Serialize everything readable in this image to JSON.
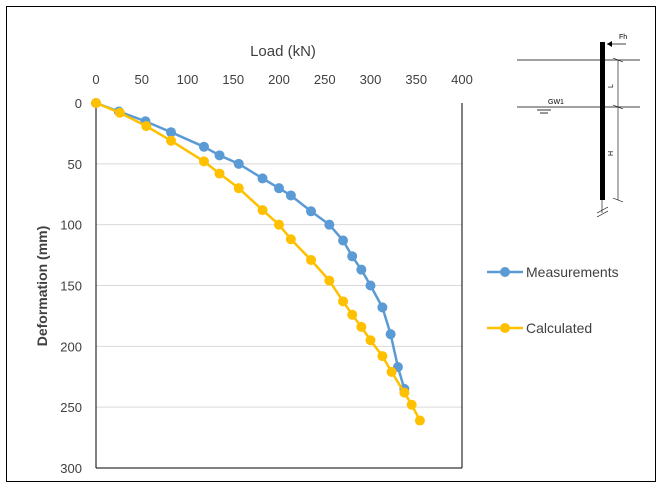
{
  "chart_data": {
    "type": "line",
    "xlabel": "Load (kN)",
    "ylabel": "Deformation (mm)",
    "xlim": [
      0,
      400
    ],
    "ylim": [
      0,
      300
    ],
    "x_axis_position": "top",
    "y_axis_reversed": true,
    "xticks": [
      0,
      50,
      100,
      150,
      200,
      250,
      300,
      350,
      400
    ],
    "yticks": [
      0,
      50,
      100,
      150,
      200,
      250,
      300
    ],
    "grid": "horizontal",
    "legend_position": "right",
    "series": [
      {
        "name": "Measurements",
        "color": "#5b9bd5",
        "x": [
          0,
          25,
          54,
          82,
          118,
          135,
          156,
          182,
          200,
          213,
          235,
          255,
          270,
          280,
          290,
          300,
          313,
          322,
          330,
          337
        ],
        "y": [
          0,
          7,
          15,
          24,
          36,
          43,
          50,
          62,
          70,
          76,
          89,
          100,
          113,
          126,
          137,
          150,
          168,
          190,
          217,
          235
        ]
      },
      {
        "name": "Calculated",
        "color": "#ffc000",
        "x": [
          0,
          26,
          55,
          82,
          118,
          135,
          156,
          182,
          200,
          213,
          235,
          255,
          270,
          280,
          290,
          300,
          313,
          323,
          337,
          345,
          354
        ],
        "y": [
          0,
          8,
          19,
          31,
          48,
          58,
          70,
          88,
          100,
          112,
          129,
          146,
          163,
          174,
          184,
          195,
          208,
          221,
          238,
          248,
          261
        ]
      }
    ]
  },
  "schematic": {
    "label_force": "Fh",
    "label_gw": "GW1",
    "label_l": "L",
    "label_h": "H"
  }
}
